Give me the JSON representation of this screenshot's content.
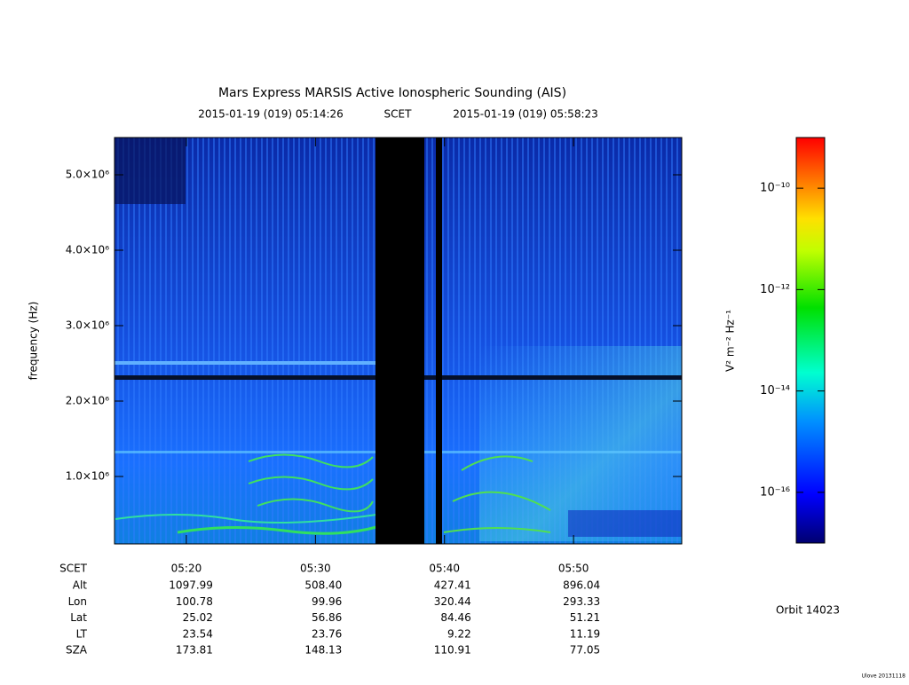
{
  "chart_data": {
    "type": "spectrogram",
    "title": "Mars Express MARSIS Active Ionospheric Sounding (AIS)",
    "start_time": "2015-01-19 (019) 05:14:26",
    "time_system": "SCET",
    "end_time": "2015-01-19 (019) 05:58:23",
    "ylabel": "frequency (Hz)",
    "ylim": [
      106000,
      5494000
    ],
    "yticks": [
      {
        "value": 1000000,
        "label": "1.0×10⁶"
      },
      {
        "value": 2000000,
        "label": "2.0×10⁶"
      },
      {
        "value": 3000000,
        "label": "3.0×10⁶"
      },
      {
        "value": 4000000,
        "label": "4.0×10⁶"
      },
      {
        "value": 5000000,
        "label": "5.0×10⁶"
      }
    ],
    "xticks": [
      "05:20",
      "05:30",
      "05:40",
      "05:50"
    ],
    "colorbar": {
      "label": "V² m⁻² Hz⁻¹",
      "log": true,
      "clim": [
        1e-17,
        1e-09
      ],
      "ticks": [
        {
          "value": 1e-10,
          "label": "10⁻¹⁰"
        },
        {
          "value": 1e-12,
          "label": "10⁻¹²"
        },
        {
          "value": 1e-14,
          "label": "10⁻¹⁴"
        },
        {
          "value": 1e-16,
          "label": "10⁻¹⁶"
        }
      ]
    },
    "ephemeris": {
      "row_labels": [
        "SCET",
        "Alt",
        "Lon",
        "Lat",
        "LT",
        "SZA"
      ],
      "rows": [
        [
          "1097.99",
          "508.40",
          "427.41",
          "896.04"
        ],
        [
          "100.78",
          "99.96",
          "320.44",
          "293.33"
        ],
        [
          "25.02",
          "56.86",
          "84.46",
          "51.21"
        ],
        [
          "23.54",
          "23.76",
          "9.22",
          "11.19"
        ],
        [
          "173.81",
          "148.13",
          "110.91",
          "77.05"
        ]
      ]
    },
    "orbit": "Orbit 14023",
    "footer": "Ulove 20131118"
  }
}
